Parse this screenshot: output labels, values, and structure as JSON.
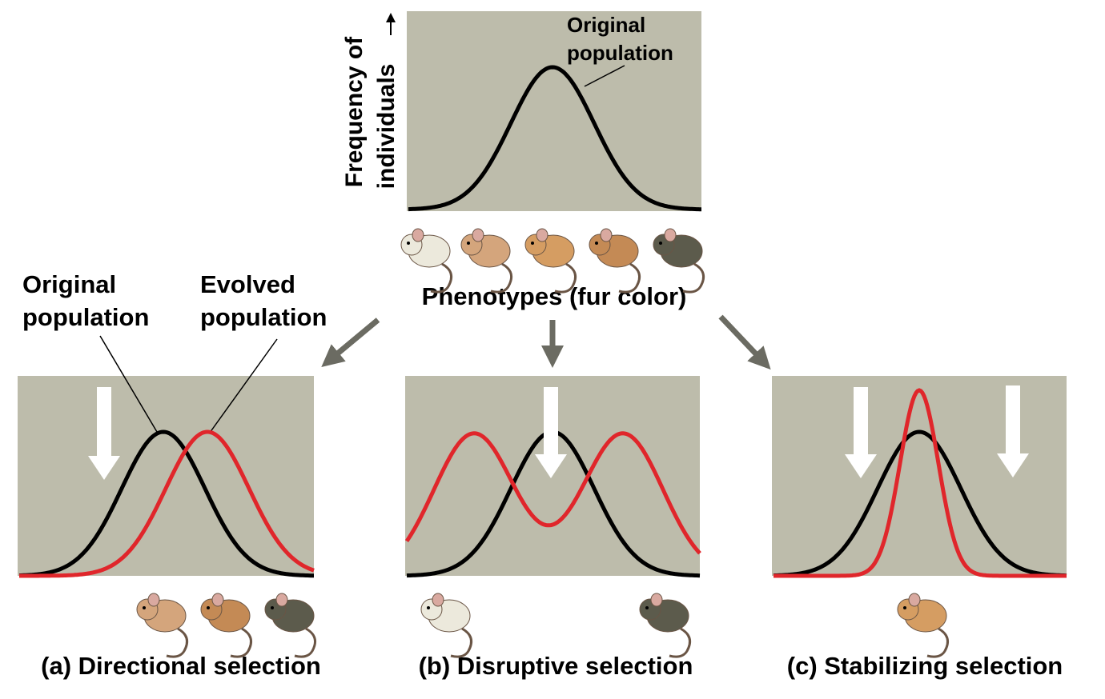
{
  "top": {
    "y_label": [
      "Frequency of",
      "individuals"
    ],
    "curve_label": [
      "Original",
      "population"
    ],
    "x_label": "Phenotypes (fur color)"
  },
  "legend": {
    "original": [
      "Original",
      "population"
    ],
    "evolved": [
      "Evolved",
      "population"
    ]
  },
  "panels": [
    "(a) Directional selection",
    "(b) Disruptive selection",
    "(c) Stabilizing selection"
  ]
}
